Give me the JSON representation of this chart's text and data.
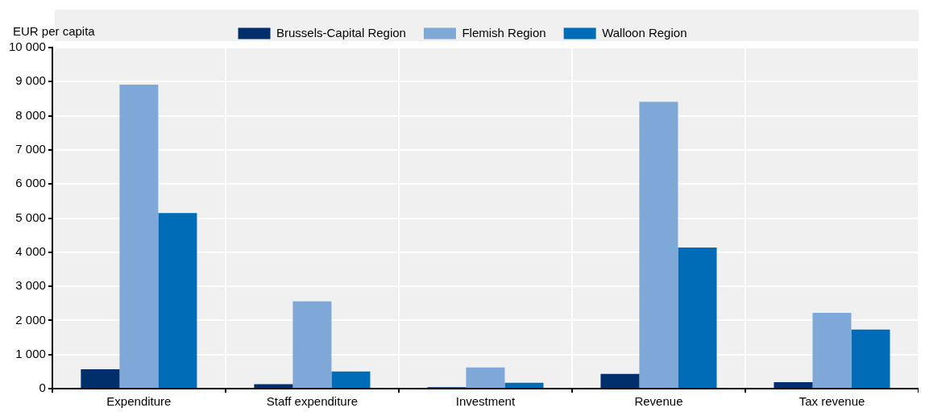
{
  "chart_data": {
    "type": "bar",
    "ylabel": "EUR per capita",
    "categories": [
      "Expenditure",
      "Staff expenditure",
      "Investment",
      "Revenue",
      "Tax revenue"
    ],
    "series": [
      {
        "name": "Brussels-Capital Region",
        "color": "#002f6c",
        "values": [
          570,
          130,
          40,
          430,
          190
        ]
      },
      {
        "name": "Flemish Region",
        "color": "#7fa8d9",
        "values": [
          8910,
          2560,
          620,
          8410,
          2220
        ]
      },
      {
        "name": "Walloon Region",
        "color": "#006bb6",
        "values": [
          5150,
          500,
          170,
          4140,
          1730
        ]
      }
    ],
    "ylim": [
      0,
      10000
    ],
    "yticks": [
      0,
      {
        "value": 1000,
        "label": "1 000"
      },
      {
        "value": 2000,
        "label": "2 000"
      },
      {
        "value": 3000,
        "label": "3 000"
      },
      {
        "value": 4000,
        "label": "4 000"
      },
      {
        "value": 5000,
        "label": "5 000"
      },
      {
        "value": 6000,
        "label": "6 000"
      },
      {
        "value": 7000,
        "label": "7 000"
      },
      {
        "value": 8000,
        "label": "8 000"
      },
      {
        "value": 9000,
        "label": "9 000"
      },
      {
        "value": 10000,
        "label": "10 000"
      }
    ],
    "grid": true,
    "legend": "top"
  }
}
